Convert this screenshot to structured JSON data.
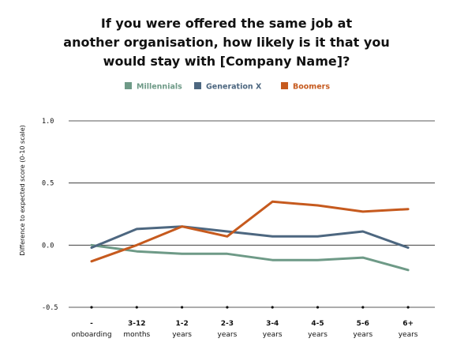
{
  "chart_data": {
    "type": "line",
    "title_lines": [
      "If you were offered the same job at",
      "another organisation, how likely is it that you",
      "would stay with [Company Name]?"
    ],
    "ylabel": "Difference to expected score (0-10 scale)",
    "xlabel": "",
    "ylim": [
      -0.5,
      1.0
    ],
    "yticks": [
      "1.0",
      "0.5",
      "0.0",
      "-0.5"
    ],
    "ytick_values": [
      1.0,
      0.5,
      0.0,
      -0.5
    ],
    "categories": [
      {
        "top": "-",
        "bottom": "onboarding"
      },
      {
        "top": "3-12",
        "bottom": "months"
      },
      {
        "top": "1-2",
        "bottom": "years"
      },
      {
        "top": "2-3",
        "bottom": "years"
      },
      {
        "top": "3-4",
        "bottom": "years"
      },
      {
        "top": "4-5",
        "bottom": "years"
      },
      {
        "top": "5-6",
        "bottom": "years"
      },
      {
        "top": "6+",
        "bottom": "years"
      }
    ],
    "series": [
      {
        "name": "Millennials",
        "color": "#6e9a87",
        "values": [
          0.0,
          -0.05,
          -0.07,
          -0.07,
          -0.12,
          -0.12,
          -0.1,
          -0.2
        ]
      },
      {
        "name": "Generation X",
        "color": "#4d6780",
        "values": [
          -0.02,
          0.13,
          0.15,
          0.11,
          0.07,
          0.07,
          0.11,
          -0.02
        ]
      },
      {
        "name": "Boomers",
        "color": "#c65a1e",
        "values": [
          -0.13,
          0.0,
          0.15,
          0.07,
          0.35,
          0.32,
          0.27,
          0.29
        ]
      }
    ],
    "grid": true,
    "legend_position": "top-center"
  }
}
